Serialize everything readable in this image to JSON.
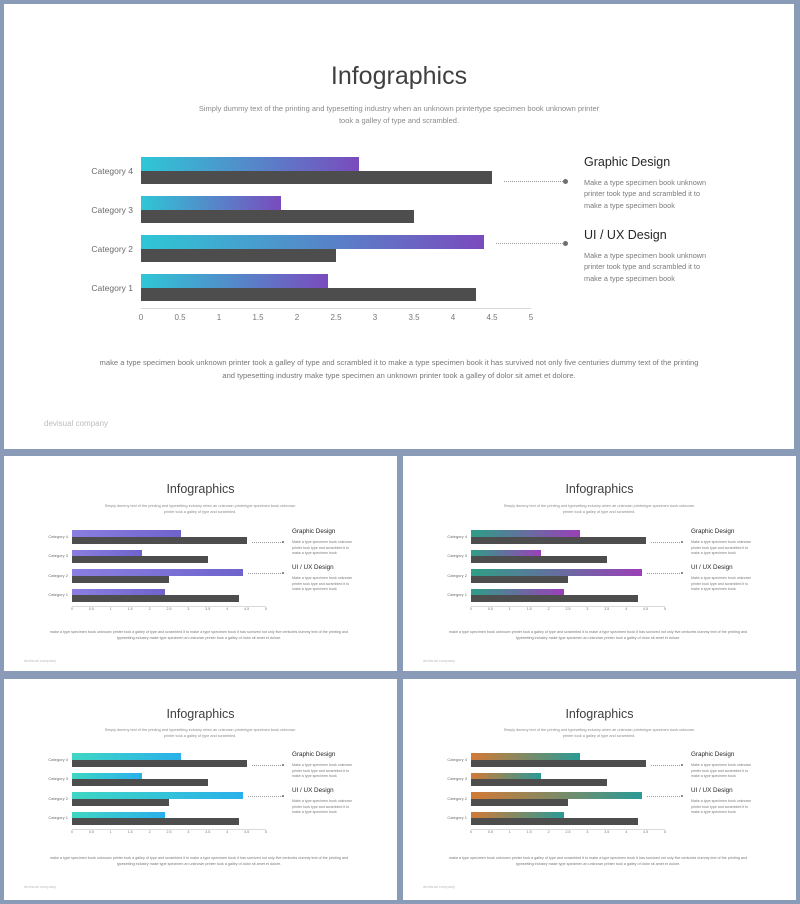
{
  "slide": {
    "title": "Infographics",
    "subtitle": "Simply dummy text of the printing and typesetting industry when an unknown printertype  specimen  book unknown printer took a galley of type and scrambled.",
    "side_items": [
      {
        "heading": "Graphic Design",
        "text": "Make a type specimen book unknown printer took type and scrambled it to make a type specimen book"
      },
      {
        "heading": "UI / UX Design",
        "text": "Make a type specimen book unknown printer took type and scrambled it to make a type specimen book"
      }
    ],
    "footer": "make a type specimen  book unknown printer took a galley of type and scrambled  it to make a type specimen  book it has survived not only five centuries dummy text of the printing and typesetting industry make type specimen  an unknown printer took a galley  of dolor sit amet  et dolore.",
    "brand": "devisual company"
  },
  "chart_data": {
    "type": "bar",
    "orientation": "horizontal",
    "categories": [
      "Category 1",
      "Category 2",
      "Category 3",
      "Category 4"
    ],
    "series": [
      {
        "values": [
          2.4,
          4.4,
          1.8,
          2.8
        ]
      },
      {
        "values": [
          4.3,
          2.5,
          3.5,
          4.5
        ]
      }
    ],
    "xlim": [
      0,
      5
    ],
    "xticks": [
      "0",
      "0.5",
      "1",
      "1.5",
      "2",
      "2.5",
      "3",
      "3.5",
      "4",
      "4.5",
      "5"
    ]
  },
  "colors": {
    "main_gradient": [
      "#2ec7d6",
      "#7a4bbd"
    ],
    "variant_1_gradient": [
      "#8a7fe0",
      "#6e63cc"
    ],
    "variant_2_gradient": [
      "#2f9e86",
      "#9b3fb8"
    ],
    "variant_3_gradient": [
      "#3fd6c4",
      "#2ab0ea"
    ],
    "variant_4_gradient": [
      "#d27a35",
      "#2a9a96"
    ],
    "dark_bar": "#4d4d4d"
  }
}
